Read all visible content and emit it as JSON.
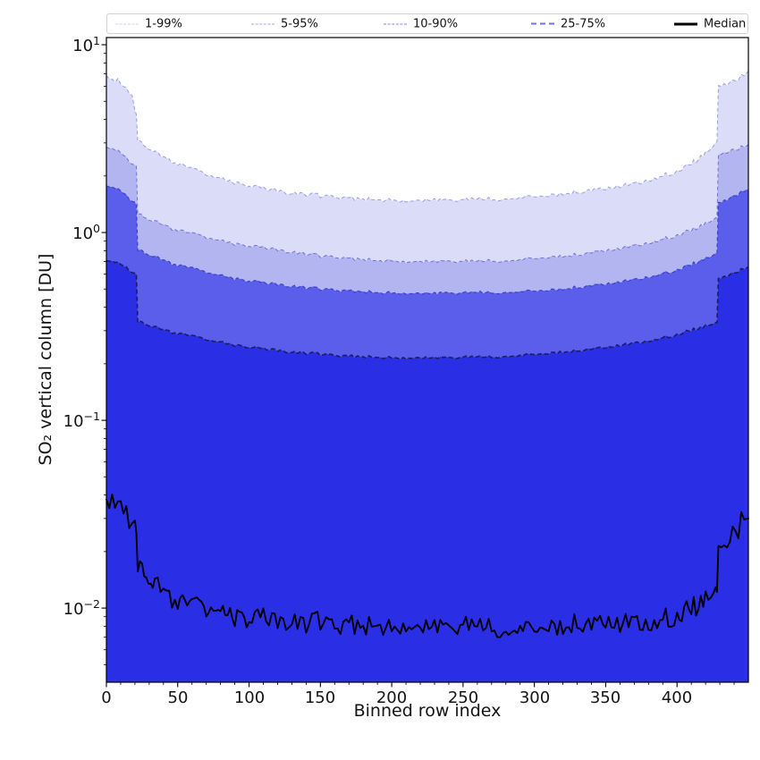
{
  "figure": {
    "background": "#ffffff"
  },
  "axes": {
    "xlabel": "Binned row index",
    "ylabel": "SO₂ vertical column [DU]"
  },
  "legend": {
    "items": [
      {
        "label": "1-99%",
        "sample": {
          "style": "dashed",
          "width": 1.3,
          "color": "#cfd1f4"
        }
      },
      {
        "label": "5-95%",
        "sample": {
          "style": "dashed",
          "width": 1.3,
          "color": "#a2a6ee"
        }
      },
      {
        "label": "10-90%",
        "sample": {
          "style": "dashed",
          "width": 1.5,
          "color": "#8186ec"
        }
      },
      {
        "label": "25-75%",
        "sample": {
          "style": "dashed",
          "width": 2.2,
          "color": "#6c72f0"
        }
      },
      {
        "label": "Median",
        "sample": {
          "style": "solid",
          "width": 3,
          "color": "#000000"
        }
      }
    ]
  },
  "chart_data": {
    "type": "area",
    "subtype": "percentile-bands-with-median",
    "title": "",
    "xlabel": "Binned row index",
    "ylabel": "SO₂ vertical column [DU]",
    "xscale": "linear",
    "yscale": "log",
    "xlim": [
      0,
      450
    ],
    "ylim": [
      0.00403,
      10.92
    ],
    "grid": false,
    "legend_position": "top-expanded",
    "band_fill_extends_to_axis_bottom": true,
    "xticks": [
      0,
      50,
      100,
      150,
      200,
      250,
      300,
      350,
      400
    ],
    "xtick_labels": [
      "0",
      "50",
      "100",
      "150",
      "200",
      "250",
      "300",
      "350",
      "400"
    ],
    "x_minor_tick_step": 10,
    "yticks": [
      10,
      1,
      0.1,
      0.01
    ],
    "ytick_labels": [
      {
        "base": "10",
        "exp": "1"
      },
      {
        "base": "10",
        "exp": "0"
      },
      {
        "base": "10",
        "exp": "−1"
      },
      {
        "base": "10",
        "exp": "−2"
      }
    ],
    "x": [
      0,
      2,
      4,
      6,
      8,
      10,
      12,
      14,
      16,
      18,
      20,
      21,
      22,
      25,
      28,
      31,
      34,
      38,
      42,
      46,
      50,
      55,
      60,
      65,
      70,
      75,
      80,
      85,
      90,
      95,
      100,
      110,
      120,
      130,
      140,
      150,
      160,
      170,
      180,
      190,
      200,
      210,
      220,
      230,
      240,
      250,
      260,
      270,
      280,
      290,
      300,
      310,
      320,
      330,
      340,
      350,
      360,
      370,
      380,
      390,
      400,
      405,
      410,
      415,
      420,
      424,
      427,
      428,
      429,
      431,
      433,
      435,
      437,
      439,
      441,
      443,
      445,
      447,
      449
    ],
    "series": [
      {
        "name": "1-99%",
        "kind": "band_upper",
        "upper_percentile": 99,
        "fill": "#dbdcf7",
        "edge": "#9a9de4",
        "stroke_width": 1.0,
        "dash": "4 3",
        "wiggle": 0.012,
        "values": [
          7.0,
          6.75,
          6.55,
          6.35,
          6.45,
          6.1,
          5.95,
          5.8,
          5.65,
          5.5,
          4.45,
          4.35,
          3.1,
          2.95,
          2.85,
          2.76,
          2.67,
          2.56,
          2.47,
          2.39,
          2.32,
          2.24,
          2.16,
          2.1,
          2.04,
          1.98,
          1.93,
          1.89,
          1.85,
          1.81,
          1.78,
          1.72,
          1.67,
          1.63,
          1.6,
          1.57,
          1.55,
          1.53,
          1.51,
          1.5,
          1.49,
          1.48,
          1.48,
          1.49,
          1.48,
          1.49,
          1.5,
          1.51,
          1.52,
          1.54,
          1.56,
          1.58,
          1.61,
          1.64,
          1.67,
          1.71,
          1.76,
          1.82,
          1.9,
          2.0,
          2.13,
          2.22,
          2.33,
          2.47,
          2.64,
          2.8,
          2.95,
          3.05,
          5.9,
          6.0,
          6.1,
          6.2,
          6.28,
          6.38,
          6.5,
          6.62,
          6.78,
          6.95,
          7.25
        ]
      },
      {
        "name": "5-95%",
        "kind": "band_upper",
        "upper_percentile": 95,
        "fill": "#b3b5f1",
        "edge": "#6d72da",
        "stroke_width": 1.0,
        "dash": "4 3",
        "wiggle": 0.01,
        "values": [
          2.9,
          2.86,
          2.81,
          2.76,
          2.7,
          2.63,
          2.56,
          2.49,
          2.42,
          2.35,
          2.29,
          2.26,
          1.26,
          1.22,
          1.19,
          1.16,
          1.14,
          1.11,
          1.08,
          1.05,
          1.03,
          1.0,
          0.98,
          0.96,
          0.94,
          0.92,
          0.9,
          0.89,
          0.87,
          0.86,
          0.85,
          0.83,
          0.81,
          0.79,
          0.77,
          0.75,
          0.74,
          0.73,
          0.72,
          0.71,
          0.71,
          0.7,
          0.7,
          0.7,
          0.7,
          0.7,
          0.7,
          0.71,
          0.71,
          0.72,
          0.73,
          0.74,
          0.75,
          0.76,
          0.78,
          0.8,
          0.82,
          0.85,
          0.88,
          0.92,
          0.97,
          1.0,
          1.03,
          1.07,
          1.11,
          1.15,
          1.18,
          1.2,
          2.55,
          2.6,
          2.64,
          2.68,
          2.71,
          2.74,
          2.77,
          2.8,
          2.84,
          2.88,
          2.93
        ]
      },
      {
        "name": "10-90%",
        "kind": "band_upper",
        "upper_percentile": 90,
        "fill": "#5a5eea",
        "edge": "#3a41cc",
        "stroke_width": 1.2,
        "dash": "4 3",
        "wiggle": 0.009,
        "values": [
          1.8,
          1.78,
          1.75,
          1.72,
          1.69,
          1.65,
          1.61,
          1.57,
          1.53,
          1.49,
          1.45,
          1.43,
          0.81,
          0.79,
          0.77,
          0.755,
          0.74,
          0.72,
          0.7,
          0.685,
          0.67,
          0.655,
          0.64,
          0.625,
          0.615,
          0.6,
          0.59,
          0.58,
          0.57,
          0.56,
          0.555,
          0.54,
          0.53,
          0.52,
          0.51,
          0.5,
          0.495,
          0.49,
          0.485,
          0.48,
          0.478,
          0.476,
          0.474,
          0.474,
          0.475,
          0.476,
          0.478,
          0.48,
          0.483,
          0.486,
          0.49,
          0.495,
          0.5,
          0.51,
          0.52,
          0.53,
          0.545,
          0.56,
          0.58,
          0.605,
          0.635,
          0.655,
          0.675,
          0.7,
          0.725,
          0.745,
          0.765,
          0.775,
          1.42,
          1.44,
          1.47,
          1.5,
          1.52,
          1.55,
          1.58,
          1.61,
          1.64,
          1.67,
          1.71
        ]
      },
      {
        "name": "25-75%",
        "kind": "band_upper",
        "upper_percentile": 75,
        "fill": "#2a2ee5",
        "edge": "#1b1e5e",
        "stroke_width": 1.6,
        "dash": "5 3",
        "wiggle": 0.008,
        "values": [
          0.72,
          0.715,
          0.705,
          0.695,
          0.685,
          0.672,
          0.66,
          0.648,
          0.635,
          0.62,
          0.607,
          0.6,
          0.335,
          0.329,
          0.323,
          0.318,
          0.313,
          0.306,
          0.3,
          0.295,
          0.29,
          0.285,
          0.279,
          0.274,
          0.269,
          0.264,
          0.26,
          0.256,
          0.252,
          0.249,
          0.246,
          0.24,
          0.236,
          0.232,
          0.228,
          0.225,
          0.222,
          0.22,
          0.218,
          0.217,
          0.216,
          0.215,
          0.215,
          0.215,
          0.215,
          0.216,
          0.217,
          0.218,
          0.22,
          0.222,
          0.225,
          0.228,
          0.231,
          0.235,
          0.239,
          0.244,
          0.25,
          0.257,
          0.265,
          0.275,
          0.287,
          0.294,
          0.301,
          0.309,
          0.317,
          0.323,
          0.328,
          0.331,
          0.56,
          0.57,
          0.578,
          0.587,
          0.595,
          0.604,
          0.613,
          0.622,
          0.632,
          0.643,
          0.655
        ]
      },
      {
        "name": "Median",
        "kind": "line",
        "color": "#000000",
        "stroke_width": 1.9,
        "wiggle": 0.055,
        "values": [
          0.042,
          0.038,
          0.04,
          0.035,
          0.033,
          0.035,
          0.031,
          0.032,
          0.03,
          0.031,
          0.029,
          0.028,
          0.017,
          0.0155,
          0.0145,
          0.0138,
          0.0132,
          0.0125,
          0.0118,
          0.0113,
          0.0108,
          0.0103,
          0.0099,
          0.0102,
          0.0096,
          0.0099,
          0.0092,
          0.0095,
          0.009,
          0.0093,
          0.0088,
          0.009,
          0.0085,
          0.0088,
          0.0083,
          0.0086,
          0.0081,
          0.0084,
          0.008,
          0.0083,
          0.0079,
          0.0082,
          0.0078,
          0.008,
          0.0077,
          0.008,
          0.0078,
          0.0081,
          0.0077,
          0.008,
          0.0078,
          0.0082,
          0.0079,
          0.0083,
          0.008,
          0.0084,
          0.0081,
          0.0085,
          0.0082,
          0.0087,
          0.0092,
          0.0096,
          0.01,
          0.0105,
          0.011,
          0.0115,
          0.012,
          0.0122,
          0.019,
          0.021,
          0.02,
          0.023,
          0.022,
          0.025,
          0.027,
          0.026,
          0.029,
          0.032,
          0.03
        ]
      }
    ]
  }
}
